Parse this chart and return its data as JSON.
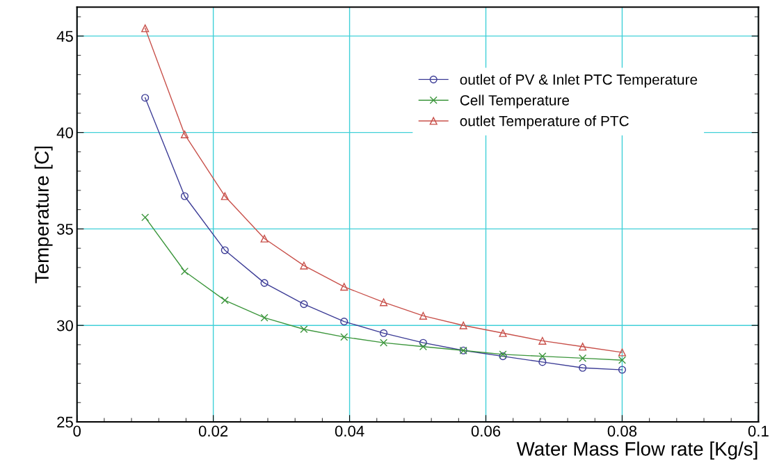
{
  "chart_data": {
    "type": "line",
    "xlabel": "Water Mass Flow rate [Kg/s]",
    "ylabel": "Temperature [C]",
    "x": [
      0.01,
      0.0158,
      0.0217,
      0.0275,
      0.0333,
      0.0392,
      0.045,
      0.0508,
      0.0567,
      0.0625,
      0.0683,
      0.0742,
      0.08
    ],
    "series": [
      {
        "name": "outlet of PV & Inlet PTC Temperature",
        "color": "#3c3c96",
        "marker": "circle",
        "values": [
          41.8,
          36.7,
          33.9,
          32.2,
          31.1,
          30.2,
          29.6,
          29.1,
          28.7,
          28.4,
          28.1,
          27.8,
          27.7
        ]
      },
      {
        "name": "Cell Temperature",
        "color": "#3c963c",
        "marker": "cross",
        "values": [
          35.6,
          32.8,
          31.3,
          30.4,
          29.8,
          29.4,
          29.1,
          28.9,
          28.7,
          28.5,
          28.4,
          28.3,
          28.2
        ]
      },
      {
        "name": "outlet Temperature of PTC",
        "color": "#c8504a",
        "marker": "triangle",
        "values": [
          45.4,
          39.9,
          36.7,
          34.5,
          33.1,
          32.0,
          31.2,
          30.5,
          30.0,
          29.6,
          29.2,
          28.9,
          28.6
        ]
      }
    ],
    "xlim": [
      0,
      0.1
    ],
    "xticks": [
      0,
      0.02,
      0.04,
      0.06,
      0.08,
      0.1
    ],
    "ylim": [
      25,
      46.5
    ],
    "yticks": [
      25,
      30,
      35,
      40,
      45
    ],
    "grid": true,
    "legend": "top right"
  }
}
